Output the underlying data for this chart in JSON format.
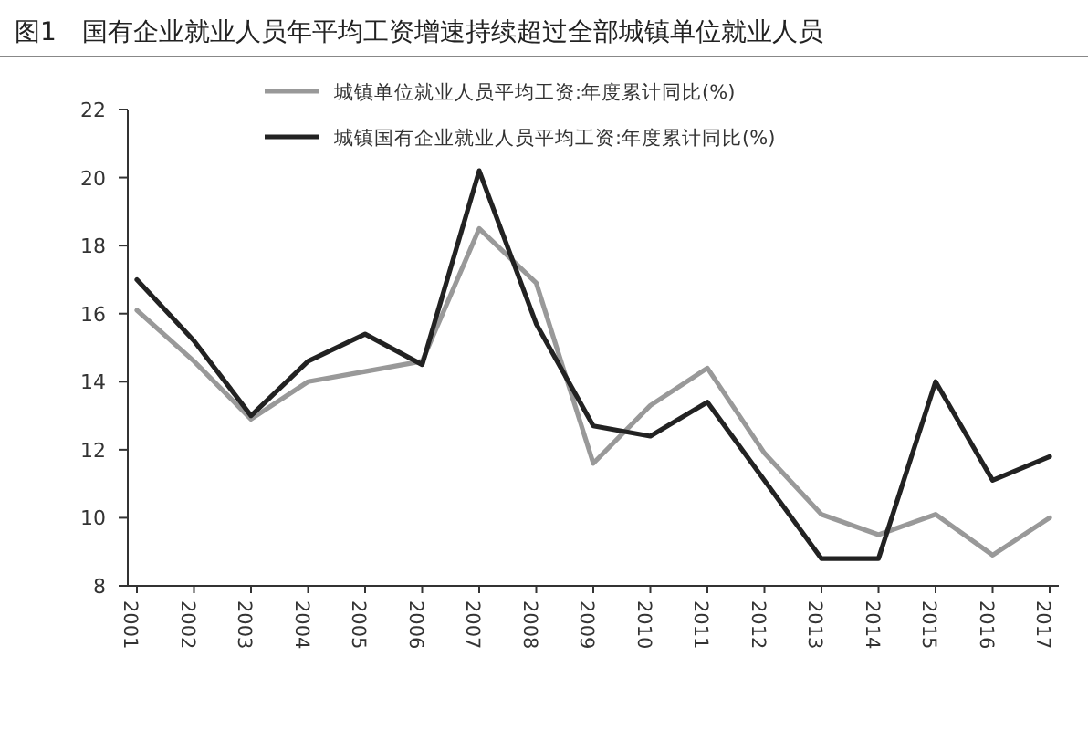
{
  "chart_data": {
    "type": "line",
    "title": "图1　国有企业就业人员年平均工资增速持续超过全部城镇单位就业人员",
    "categories": [
      "2001",
      "2002",
      "2003",
      "2004",
      "2005",
      "2006",
      "2007",
      "2008",
      "2009",
      "2010",
      "2011",
      "2012",
      "2013",
      "2014",
      "2015",
      "2016",
      "2017"
    ],
    "series": [
      {
        "name": "城镇单位就业人员平均工资:年度累计同比(%)",
        "color": "#999999",
        "values": [
          16.1,
          14.6,
          12.9,
          14.0,
          14.3,
          14.6,
          18.5,
          16.9,
          11.6,
          13.3,
          14.4,
          11.9,
          10.1,
          9.5,
          10.1,
          8.9,
          10.0
        ]
      },
      {
        "name": "城镇国有企业就业人员平均工资:年度累计同比(%)",
        "color": "#222222",
        "values": [
          17.0,
          15.2,
          13.0,
          14.6,
          15.4,
          14.5,
          20.2,
          15.7,
          12.7,
          12.4,
          13.4,
          11.1,
          8.8,
          8.8,
          14.0,
          11.1,
          11.8
        ]
      }
    ],
    "ylim": [
      8,
      22
    ],
    "yticks": [
      8,
      10,
      12,
      14,
      16,
      18,
      20,
      22
    ],
    "grid": false,
    "legend": "top",
    "marker": "none",
    "line_style": "solid"
  }
}
